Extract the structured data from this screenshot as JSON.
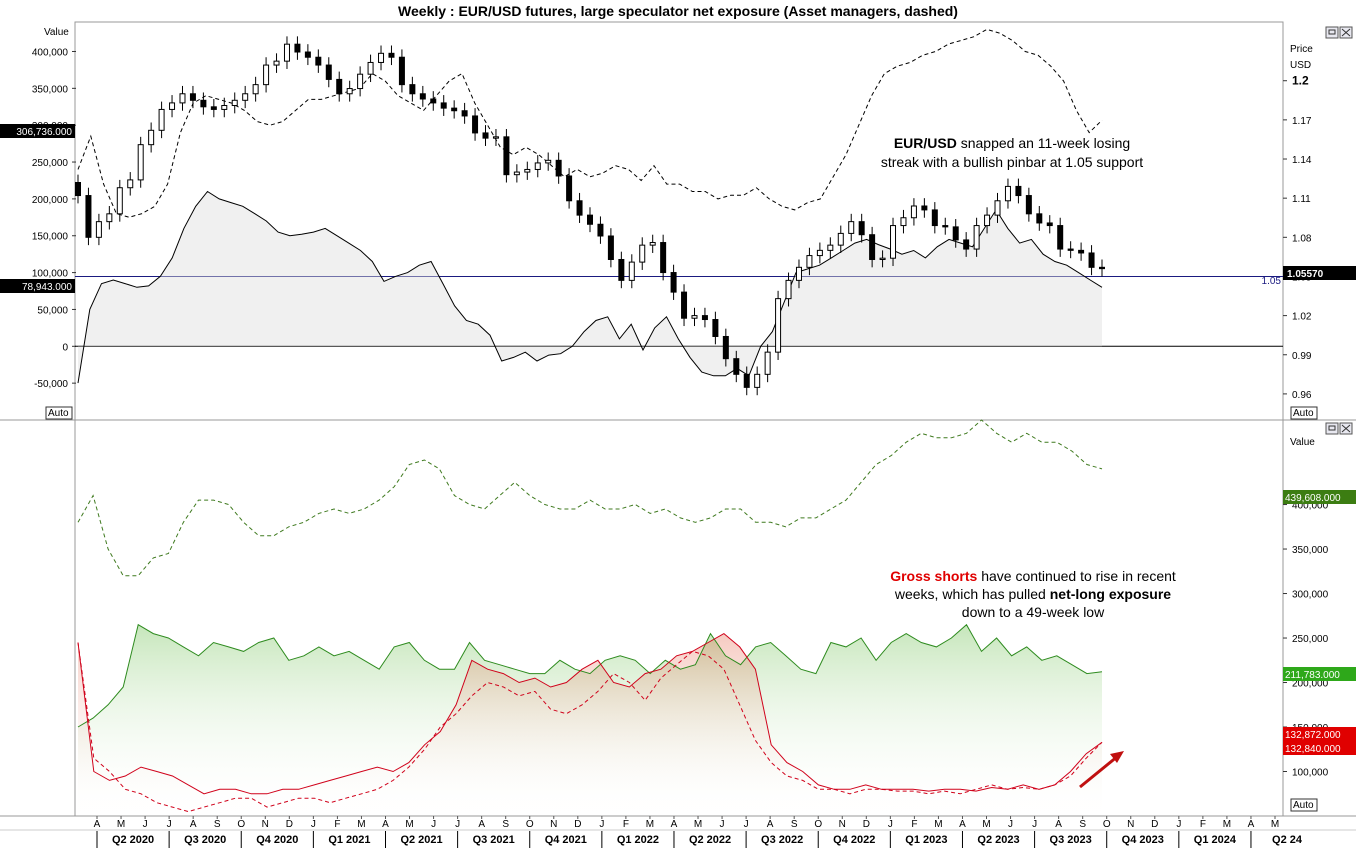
{
  "title": "Weekly : EUR/USD futures, large speculator net exposure (Asset managers, dashed)",
  "chart_data": [
    {
      "type": "line",
      "panel": "top",
      "left_axis_label": "Value",
      "left_ticks": [
        "400,000",
        "350,000",
        "300,000",
        "250,000",
        "200,000",
        "150,000",
        "100,000",
        "50,000",
        "0",
        "-50,000"
      ],
      "left_ylim": [
        -100000,
        440000
      ],
      "right_axis_label_1": "Price",
      "right_axis_label_2": "USD",
      "right_ticks": [
        "1.2",
        "1.17",
        "1.14",
        "1.11",
        "1.08",
        "1.05",
        "1.02",
        "0.99",
        "0.96"
      ],
      "right_ylim": [
        0.94,
        1.245
      ],
      "badges": {
        "left_high": "306,736.000",
        "left_low": "78,943.000",
        "right_price": "1.05570",
        "level_label": "1.05",
        "auto_left": "Auto",
        "auto_right": "Auto"
      },
      "hline_price": 1.05,
      "series": [
        {
          "name": "EUR/USD",
          "kind": "candlestick",
          "color": "#000000",
          "values": [
            1.112,
            1.08,
            1.092,
            1.098,
            1.118,
            1.124,
            1.151,
            1.162,
            1.178,
            1.183,
            1.19,
            1.185,
            1.18,
            1.178,
            1.181,
            1.185,
            1.19,
            1.197,
            1.212,
            1.215,
            1.228,
            1.222,
            1.218,
            1.212,
            1.201,
            1.19,
            1.194,
            1.205,
            1.214,
            1.221,
            1.218,
            1.197,
            1.19,
            1.186,
            1.183,
            1.179,
            1.177,
            1.173,
            1.16,
            1.156,
            1.157,
            1.128,
            1.13,
            1.132,
            1.137,
            1.139,
            1.127,
            1.108,
            1.097,
            1.09,
            1.081,
            1.063,
            1.047,
            1.061,
            1.074,
            1.076,
            1.053,
            1.038,
            1.018,
            1.02,
            1.017,
            1.004,
            0.987,
            0.975,
            0.965,
            0.975,
            0.992,
            1.033,
            1.047,
            1.057,
            1.066,
            1.07,
            1.074,
            1.083,
            1.092,
            1.082,
            1.063,
            1.064,
            1.089,
            1.095,
            1.104,
            1.101,
            1.089,
            1.088,
            1.078,
            1.071,
            1.089,
            1.097,
            1.108,
            1.119,
            1.112,
            1.098,
            1.091,
            1.089,
            1.071,
            1.07,
            1.068,
            1.057,
            1.056
          ]
        },
        {
          "name": "Large speculators",
          "kind": "area",
          "color": "#000000",
          "values": [
            -50000,
            50000,
            85000,
            90000,
            85000,
            80000,
            82000,
            95000,
            120000,
            160000,
            190000,
            210000,
            200000,
            195000,
            190000,
            180000,
            170000,
            155000,
            150000,
            152000,
            155000,
            160000,
            150000,
            140000,
            130000,
            115000,
            88000,
            95000,
            100000,
            110000,
            115000,
            85000,
            55000,
            35000,
            30000,
            15000,
            -20000,
            -15000,
            -8000,
            -20000,
            -12000,
            -10000,
            0,
            20000,
            35000,
            40000,
            10000,
            30000,
            -5000,
            25000,
            40000,
            10000,
            -15000,
            -35000,
            -40000,
            -40000,
            -30000,
            -40000,
            0,
            20000,
            60000,
            100000,
            105000,
            110000,
            120000,
            130000,
            140000,
            145000,
            138000,
            132000,
            125000,
            130000,
            120000,
            135000,
            145000,
            140000,
            135000,
            160000,
            185000,
            160000,
            140000,
            145000,
            125000,
            115000,
            110000,
            100000,
            90000,
            80000
          ]
        },
        {
          "name": "Asset managers",
          "kind": "line",
          "dashed": true,
          "color": "#000000",
          "values": [
            240000,
            285000,
            220000,
            180000,
            175000,
            180000,
            190000,
            220000,
            290000,
            330000,
            340000,
            335000,
            330000,
            320000,
            305000,
            300000,
            305000,
            320000,
            335000,
            335000,
            340000,
            345000,
            350000,
            370000,
            360000,
            340000,
            330000,
            320000,
            340000,
            360000,
            370000,
            330000,
            300000,
            270000,
            260000,
            270000,
            260000,
            245000,
            230000,
            240000,
            230000,
            235000,
            245000,
            240000,
            225000,
            245000,
            220000,
            220000,
            210000,
            210000,
            200000,
            205000,
            205000,
            215000,
            200000,
            190000,
            185000,
            195000,
            200000,
            230000,
            260000,
            300000,
            340000,
            370000,
            380000,
            385000,
            395000,
            400000,
            410000,
            415000,
            420000,
            430000,
            425000,
            415000,
            400000,
            395000,
            380000,
            360000,
            320000,
            290000,
            306736
          ]
        }
      ]
    },
    {
      "type": "area",
      "panel": "bottom",
      "right_axis_label": "Value",
      "right_ticks": [
        "400,000",
        "350,000",
        "300,000",
        "250,000",
        "200,000",
        "150,000",
        "100,000"
      ],
      "ylim": [
        50000,
        495000
      ],
      "badges": {
        "green": "439,608.000",
        "longs": "211,783.000",
        "shorts_1": "132,872.000",
        "shorts_2": "132,840.000",
        "auto": "Auto"
      },
      "series": [
        {
          "name": "Open interest",
          "kind": "line",
          "dashed": true,
          "color": "#3f7a1f",
          "values": [
            380000,
            410000,
            350000,
            320000,
            320000,
            340000,
            345000,
            380000,
            405000,
            405000,
            400000,
            380000,
            365000,
            365000,
            375000,
            380000,
            390000,
            395000,
            390000,
            395000,
            405000,
            420000,
            445000,
            450000,
            440000,
            410000,
            400000,
            395000,
            410000,
            425000,
            410000,
            400000,
            395000,
            395000,
            405000,
            395000,
            395000,
            400000,
            390000,
            395000,
            385000,
            380000,
            385000,
            395000,
            395000,
            380000,
            380000,
            375000,
            385000,
            385000,
            395000,
            405000,
            425000,
            445000,
            455000,
            470000,
            480000,
            475000,
            475000,
            480000,
            495000,
            480000,
            470000,
            480000,
            470000,
            470000,
            460000,
            445000,
            440000
          ]
        },
        {
          "name": "Gross longs",
          "kind": "area",
          "color": "#2e8b1f",
          "values": [
            150000,
            160000,
            175000,
            195000,
            265000,
            255000,
            250000,
            240000,
            230000,
            245000,
            240000,
            235000,
            245000,
            250000,
            225000,
            230000,
            240000,
            230000,
            235000,
            225000,
            215000,
            240000,
            245000,
            225000,
            215000,
            215000,
            245000,
            225000,
            220000,
            215000,
            210000,
            210000,
            225000,
            215000,
            210000,
            225000,
            230000,
            225000,
            210000,
            225000,
            215000,
            220000,
            255000,
            230000,
            220000,
            240000,
            245000,
            230000,
            215000,
            210000,
            245000,
            240000,
            250000,
            225000,
            245000,
            255000,
            245000,
            240000,
            250000,
            265000,
            235000,
            250000,
            230000,
            240000,
            225000,
            230000,
            220000,
            210000,
            212000
          ]
        },
        {
          "name": "Gross shorts",
          "kind": "area",
          "color": "#d0021b",
          "values": [
            245000,
            100000,
            90000,
            95000,
            105000,
            100000,
            95000,
            85000,
            75000,
            80000,
            80000,
            75000,
            75000,
            80000,
            80000,
            85000,
            90000,
            95000,
            100000,
            105000,
            100000,
            110000,
            130000,
            145000,
            175000,
            225000,
            215000,
            210000,
            200000,
            205000,
            195000,
            200000,
            215000,
            225000,
            200000,
            195000,
            210000,
            215000,
            230000,
            235000,
            245000,
            255000,
            240000,
            215000,
            130000,
            110000,
            100000,
            85000,
            80000,
            80000,
            85000,
            80000,
            80000,
            80000,
            78000,
            80000,
            80000,
            78000,
            82000,
            80000,
            85000,
            80000,
            85000,
            100000,
            120000,
            132872
          ]
        },
        {
          "name": "Gross shorts (Asset managers)",
          "kind": "line",
          "dashed": true,
          "color": "#d0021b",
          "values": [
            245000,
            115000,
            100000,
            80000,
            75000,
            65000,
            60000,
            55000,
            60000,
            65000,
            70000,
            70000,
            60000,
            65000,
            70000,
            70000,
            65000,
            70000,
            75000,
            80000,
            90000,
            105000,
            125000,
            150000,
            165000,
            185000,
            200000,
            195000,
            185000,
            190000,
            170000,
            165000,
            175000,
            190000,
            210000,
            200000,
            180000,
            205000,
            220000,
            235000,
            230000,
            215000,
            175000,
            135000,
            110000,
            95000,
            90000,
            80000,
            80000,
            75000,
            80000,
            80000,
            78000,
            78000,
            75000,
            78000,
            75000,
            80000,
            85000,
            80000,
            82000,
            80000,
            85000,
            95000,
            115000,
            132840
          ]
        }
      ]
    }
  ],
  "annotations": {
    "top_bold": "EUR/USD",
    "top_line1_rest": " snapped an 11-week losing",
    "top_line2": "streak with a bullish pinbar at 1.05 support",
    "bottom_red": "Gross shorts",
    "bottom_line1_rest": " have continued to rise in recent",
    "bottom_line2_a": "weeks, which has pulled ",
    "bottom_line2_bold": "net-long exposure",
    "bottom_line3": "down to a 49-week low"
  },
  "x_axis": {
    "months": [
      "A",
      "M",
      "J",
      "J",
      "A",
      "S",
      "O",
      "N",
      "D",
      "J",
      "F",
      "M",
      "A",
      "M",
      "J",
      "J",
      "A",
      "S",
      "O",
      "N",
      "D",
      "J",
      "F",
      "M",
      "A",
      "M",
      "J",
      "J",
      "A",
      "S",
      "O",
      "N",
      "D",
      "J",
      "F",
      "M",
      "A",
      "M",
      "J",
      "J",
      "A",
      "S",
      "O",
      "N",
      "D",
      "J",
      "F",
      "M",
      "A",
      "M"
    ],
    "quarters": [
      "Q2 2020",
      "Q3 2020",
      "Q4 2020",
      "Q1 2021",
      "Q2 2021",
      "Q3 2021",
      "Q4 2021",
      "Q1 2022",
      "Q2 2022",
      "Q3 2022",
      "Q4 2022",
      "Q1 2023",
      "Q2 2023",
      "Q3 2023",
      "Q4 2023",
      "Q1 2024",
      "Q2 24"
    ]
  }
}
